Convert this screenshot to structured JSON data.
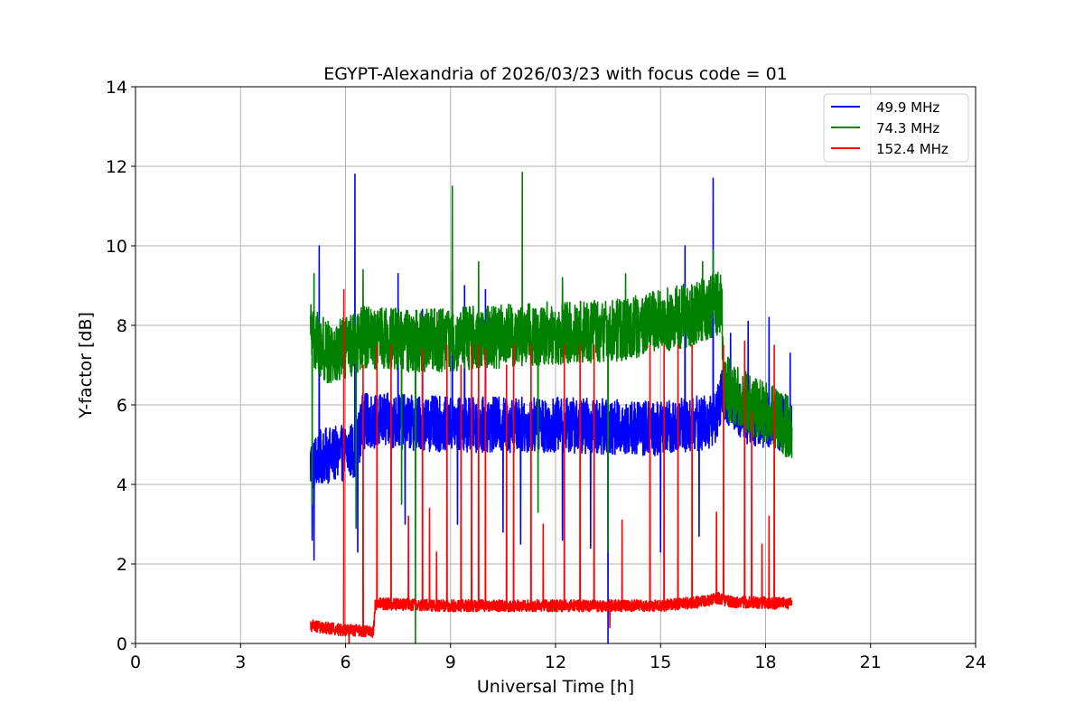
{
  "chart_data": {
    "type": "line",
    "title": "EGYPT-Alexandria of 2026/03/23 with focus code = 01",
    "xlabel": "Universal Time [h]",
    "ylabel": "Y-factor [dB]",
    "xlim": [
      0,
      24
    ],
    "ylim": [
      0,
      14
    ],
    "xticks": [
      0,
      3,
      6,
      9,
      12,
      15,
      18,
      21,
      24
    ],
    "yticks": [
      0,
      2,
      4,
      6,
      8,
      10,
      12,
      14
    ],
    "grid": true,
    "legend_position": "top-right",
    "series": [
      {
        "name": "49.9 MHz",
        "color": "#0000ff",
        "x_start": 5.0,
        "x_end": 18.75,
        "baseline": [
          [
            5.0,
            4.5
          ],
          [
            5.3,
            4.7
          ],
          [
            6.0,
            4.8
          ],
          [
            6.3,
            4.9
          ],
          [
            6.5,
            5.6
          ],
          [
            7.0,
            5.6
          ],
          [
            9.0,
            5.5
          ],
          [
            12.0,
            5.5
          ],
          [
            15.0,
            5.4
          ],
          [
            16.5,
            5.6
          ],
          [
            16.8,
            6.3
          ],
          [
            17.5,
            5.7
          ],
          [
            18.75,
            5.5
          ]
        ],
        "noise": 1.4,
        "spikes": [
          [
            5.05,
            2.6
          ],
          [
            5.1,
            2.1
          ],
          [
            5.25,
            10.0
          ],
          [
            6.27,
            11.8
          ],
          [
            6.35,
            2.3
          ],
          [
            7.3,
            3.8
          ],
          [
            7.5,
            9.3
          ],
          [
            7.7,
            3.0
          ],
          [
            8.2,
            8.4
          ],
          [
            9.05,
            9.4
          ],
          [
            9.2,
            3.0
          ],
          [
            9.4,
            9.0
          ],
          [
            10.0,
            8.9
          ],
          [
            10.5,
            2.8
          ],
          [
            11.0,
            2.5
          ],
          [
            12.2,
            2.6
          ],
          [
            13.0,
            2.4
          ],
          [
            13.5,
            0.0
          ],
          [
            15.0,
            2.3
          ],
          [
            15.7,
            10.0
          ],
          [
            16.1,
            2.7
          ],
          [
            16.5,
            11.7
          ],
          [
            17.0,
            7.8
          ],
          [
            17.5,
            8.1
          ],
          [
            18.1,
            8.2
          ],
          [
            18.7,
            7.3
          ]
        ]
      },
      {
        "name": "74.3 MHz",
        "color": "#008000",
        "x_start": 5.0,
        "x_end": 18.75,
        "baseline": [
          [
            5.0,
            7.8
          ],
          [
            5.5,
            7.3
          ],
          [
            6.0,
            7.4
          ],
          [
            6.5,
            7.7
          ],
          [
            8.0,
            7.6
          ],
          [
            10.0,
            7.7
          ],
          [
            12.0,
            7.8
          ],
          [
            14.0,
            7.9
          ],
          [
            16.0,
            8.3
          ],
          [
            16.75,
            8.6
          ],
          [
            16.8,
            6.5
          ],
          [
            17.3,
            6.1
          ],
          [
            18.0,
            5.8
          ],
          [
            18.75,
            5.4
          ]
        ],
        "noise": 1.6,
        "spikes": [
          [
            5.05,
            3.5
          ],
          [
            5.1,
            9.3
          ],
          [
            6.3,
            2.9
          ],
          [
            6.5,
            9.4
          ],
          [
            7.6,
            3.5
          ],
          [
            8.0,
            0.0
          ],
          [
            9.05,
            11.5
          ],
          [
            9.8,
            9.6
          ],
          [
            11.05,
            11.85
          ],
          [
            11.5,
            3.3
          ],
          [
            12.2,
            9.2
          ],
          [
            13.5,
            2.3
          ],
          [
            14.0,
            9.3
          ],
          [
            16.2,
            9.6
          ],
          [
            16.5,
            9.9
          ]
        ]
      },
      {
        "name": "152.4 MHz",
        "color": "#ff0000",
        "x_start": 5.0,
        "x_end": 18.75,
        "baseline": [
          [
            5.0,
            0.45
          ],
          [
            5.8,
            0.35
          ],
          [
            6.8,
            0.3
          ],
          [
            6.85,
            1.0
          ],
          [
            9.0,
            0.95
          ],
          [
            12.0,
            0.95
          ],
          [
            15.0,
            0.95
          ],
          [
            16.2,
            1.05
          ],
          [
            16.6,
            1.15
          ],
          [
            17.0,
            1.05
          ],
          [
            18.75,
            1.0
          ]
        ],
        "noise": 0.3,
        "spikes": [
          [
            5.95,
            8.9
          ],
          [
            6.1,
            0.0
          ],
          [
            6.5,
            7.0
          ],
          [
            6.9,
            7.5
          ],
          [
            7.3,
            7.5
          ],
          [
            7.8,
            3.2
          ],
          [
            8.2,
            7.4
          ],
          [
            8.4,
            3.4
          ],
          [
            8.6,
            2.3
          ],
          [
            8.9,
            7.5
          ],
          [
            9.3,
            7.0
          ],
          [
            9.6,
            7.5
          ],
          [
            9.8,
            7.5
          ],
          [
            10.0,
            7.4
          ],
          [
            10.6,
            7.0
          ],
          [
            10.8,
            7.5
          ],
          [
            11.3,
            7.5
          ],
          [
            11.65,
            3.0
          ],
          [
            12.25,
            7.5
          ],
          [
            12.7,
            7.5
          ],
          [
            13.1,
            7.5
          ],
          [
            13.55,
            0.4
          ],
          [
            13.9,
            3.1
          ],
          [
            14.7,
            7.5
          ],
          [
            15.1,
            7.5
          ],
          [
            15.5,
            7.5
          ],
          [
            15.9,
            7.5
          ],
          [
            16.8,
            7.5
          ],
          [
            16.6,
            3.3
          ],
          [
            17.4,
            7.6
          ],
          [
            17.6,
            5.8
          ],
          [
            17.9,
            2.5
          ],
          [
            18.1,
            3.2
          ],
          [
            18.25,
            7.5
          ]
        ]
      }
    ]
  }
}
